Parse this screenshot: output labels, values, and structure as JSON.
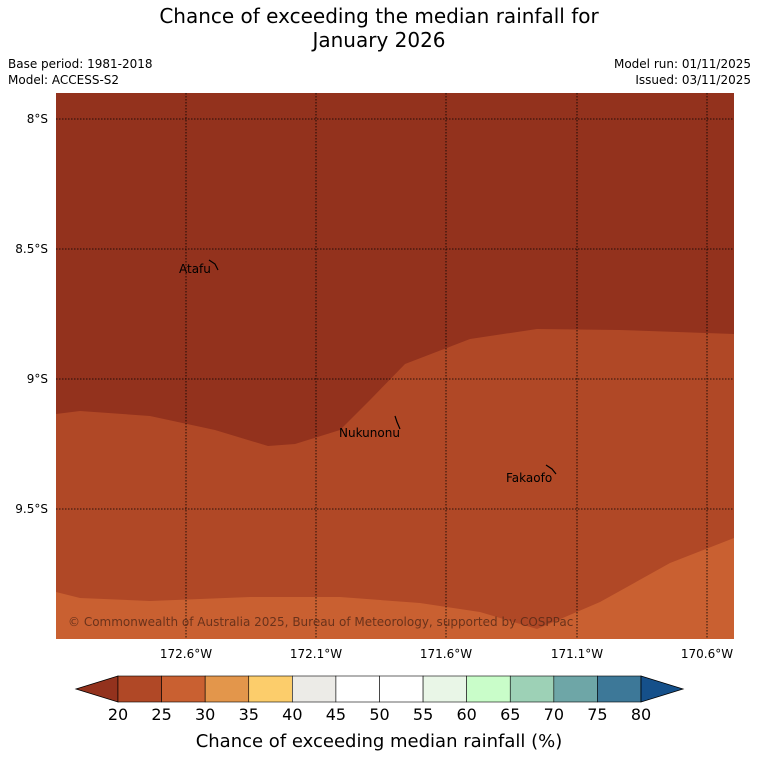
{
  "title": {
    "line1": "Chance of exceeding the median rainfall for",
    "line2": "January 2026"
  },
  "meta": {
    "base_period": "Base period: 1981-2018",
    "model": "Model: ACCESS-S2",
    "model_run": "Model run: 01/11/2025",
    "issued": "Issued: 03/11/2025"
  },
  "map": {
    "lat_ticks": [
      "8°S",
      "8.5°S",
      "9°S",
      "9.5°S"
    ],
    "lon_ticks": [
      "172.6°W",
      "172.1°W",
      "171.6°W",
      "171.1°W",
      "170.6°W"
    ],
    "places": [
      {
        "name": "Atafu"
      },
      {
        "name": "Nukunonu"
      },
      {
        "name": "Fakaofo"
      }
    ],
    "copyright": "© Commonwealth of Australia 2025, Bureau of Meteorology, supported by COSPPac",
    "zone_colors": {
      "below_20": "#93321d",
      "20_25": "#b04826",
      "25_30": "#c96031"
    }
  },
  "colorbar": {
    "title": "Chance of exceeding median rainfall (%)",
    "ticks": [
      "20",
      "25",
      "30",
      "35",
      "40",
      "45",
      "50",
      "55",
      "60",
      "65",
      "70",
      "75",
      "80"
    ],
    "under_color": "#93321d",
    "over_color": "#15508a",
    "colors": [
      "#b04826",
      "#c96031",
      "#e3964b",
      "#fccd6b",
      "#ecebe7",
      "#ffffff",
      "#ffffff",
      "#e9f6e7",
      "#c9fdc9",
      "#9dd1b6",
      "#6ea6a7",
      "#3d7898"
    ]
  }
}
